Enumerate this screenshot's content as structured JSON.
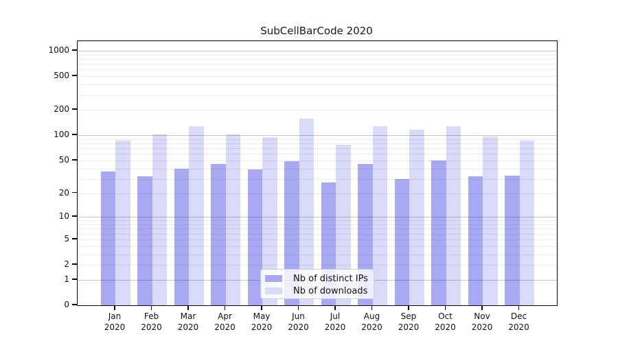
{
  "chart_data": {
    "type": "bar",
    "title": "SubCellBarCode 2020",
    "categories": [
      "Jan",
      "Feb",
      "Mar",
      "Apr",
      "May",
      "Jun",
      "Jul",
      "Aug",
      "Sep",
      "Oct",
      "Nov",
      "Dec"
    ],
    "category_year": "2020",
    "series": [
      {
        "name": "Nb of distinct IPs",
        "color": "#a9a9f3",
        "values": [
          37,
          32,
          40,
          45,
          39,
          49,
          27,
          45,
          30,
          50,
          32,
          33
        ]
      },
      {
        "name": "Nb of downloads",
        "color": "#d9d9f8",
        "values": [
          87,
          102,
          128,
          103,
          95,
          158,
          77,
          129,
          117,
          128,
          96,
          86
        ]
      }
    ],
    "yscale": "log1p",
    "ylim": [
      0,
      1300
    ],
    "yticks": [
      1000,
      500,
      200,
      100,
      50,
      20,
      10,
      5,
      2,
      1,
      0
    ],
    "grid": {
      "major_lines": [
        1,
        10,
        100,
        1000
      ],
      "minor_decades": [
        1,
        10,
        100
      ],
      "minor_subs": [
        2,
        3,
        4,
        5,
        6,
        7,
        8,
        9
      ],
      "shown": true
    },
    "legend": {
      "position": "bottom-center"
    }
  },
  "colors": {
    "axis": "#000000",
    "major_grid": "rgba(0,0,0,0.22)",
    "minor_grid": "rgba(0,0,0,0.075)",
    "background": "#ffffff"
  }
}
